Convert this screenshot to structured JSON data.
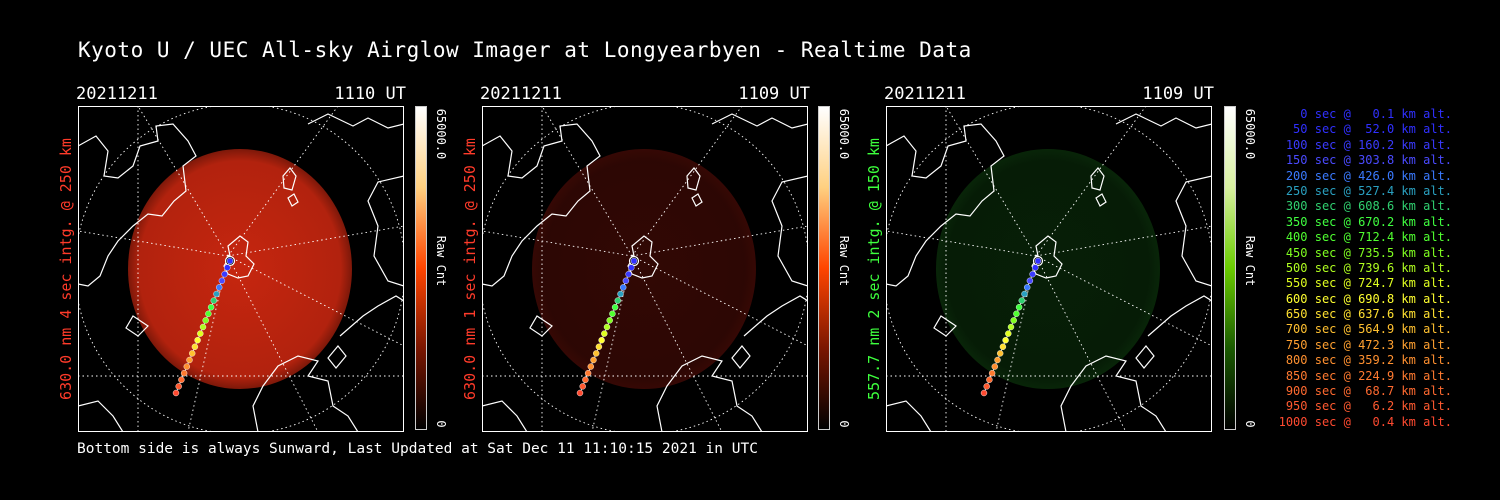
{
  "title": "Kyoto U / UEC All-sky Airglow Imager at Longyearbyen - Realtime Data",
  "footer": "Bottom side is always Sunward, Last Updated at Sat Dec 11 11:10:15 2021 in UTC",
  "panels": [
    {
      "date": "20211211",
      "time": "1110 UT",
      "label": "630.0 nm 4 sec intg. @ 250 km",
      "label_color": "#ff3b2a",
      "glow": "#d02810",
      "glow_level": 0.95,
      "cbar_max": "65000.0",
      "cbar_unit": "Raw Cnt",
      "cbar_min": "0",
      "cbar_colors": [
        "#000000",
        "#7a1600",
        "#ff4500",
        "#ffd080",
        "#ffffff"
      ]
    },
    {
      "date": "20211211",
      "time": "1109 UT",
      "label": "630.0 nm 1 sec intg. @ 250 km",
      "label_color": "#ff3b2a",
      "glow": "#5a0e08",
      "glow_level": 0.55,
      "cbar_max": "65000.0",
      "cbar_unit": "Raw Cnt",
      "cbar_min": "0",
      "cbar_colors": [
        "#000000",
        "#7a1600",
        "#ff4500",
        "#ffd080",
        "#ffffff"
      ]
    },
    {
      "date": "20211211",
      "time": "1109 UT",
      "label": "557.7 nm 2 sec intg. @ 150 km",
      "label_color": "#3dff3d",
      "glow": "#0e3e0e",
      "glow_level": 0.5,
      "cbar_max": "65000.0",
      "cbar_unit": "Raw Cnt",
      "cbar_min": "0",
      "cbar_colors": [
        "#000000",
        "#1a5a00",
        "#6acc00",
        "#d8f0a0",
        "#ffffff"
      ]
    }
  ],
  "legend": [
    {
      "text": "0 sec @   0.1 km alt.",
      "color": "#3030ff"
    },
    {
      "text": "50 sec @  52.0 km alt.",
      "color": "#3030ff"
    },
    {
      "text": "100 sec @ 160.2 km alt.",
      "color": "#3a3aff"
    },
    {
      "text": "150 sec @ 303.8 km alt.",
      "color": "#4a4aff"
    },
    {
      "text": "200 sec @ 426.0 km alt.",
      "color": "#3a7aff"
    },
    {
      "text": "250 sec @ 527.4 km alt.",
      "color": "#2aa0c0"
    },
    {
      "text": "300 sec @ 608.6 km alt.",
      "color": "#30d070"
    },
    {
      "text": "350 sec @ 670.2 km alt.",
      "color": "#40ff40"
    },
    {
      "text": "400 sec @ 712.4 km alt.",
      "color": "#50ff30"
    },
    {
      "text": "450 sec @ 735.5 km alt.",
      "color": "#80ff20"
    },
    {
      "text": "500 sec @ 739.6 km alt.",
      "color": "#b0ff20"
    },
    {
      "text": "550 sec @ 724.7 km alt.",
      "color": "#e0ff20"
    },
    {
      "text": "600 sec @ 690.8 km alt.",
      "color": "#ffff30"
    },
    {
      "text": "650 sec @ 637.6 km alt.",
      "color": "#ffe030"
    },
    {
      "text": "700 sec @ 564.9 km alt.",
      "color": "#ffc030"
    },
    {
      "text": "750 sec @ 472.3 km alt.",
      "color": "#ffa030"
    },
    {
      "text": "800 sec @ 359.2 km alt.",
      "color": "#ff9030"
    },
    {
      "text": "850 sec @ 224.9 km alt.",
      "color": "#ff7a30"
    },
    {
      "text": "900 sec @  68.7 km alt.",
      "color": "#ff6a30"
    },
    {
      "text": "950 sec @   6.2 km alt.",
      "color": "#ff5a30"
    },
    {
      "text": "1000 sec @   0.4 km alt.",
      "color": "#ff4a30"
    }
  ]
}
